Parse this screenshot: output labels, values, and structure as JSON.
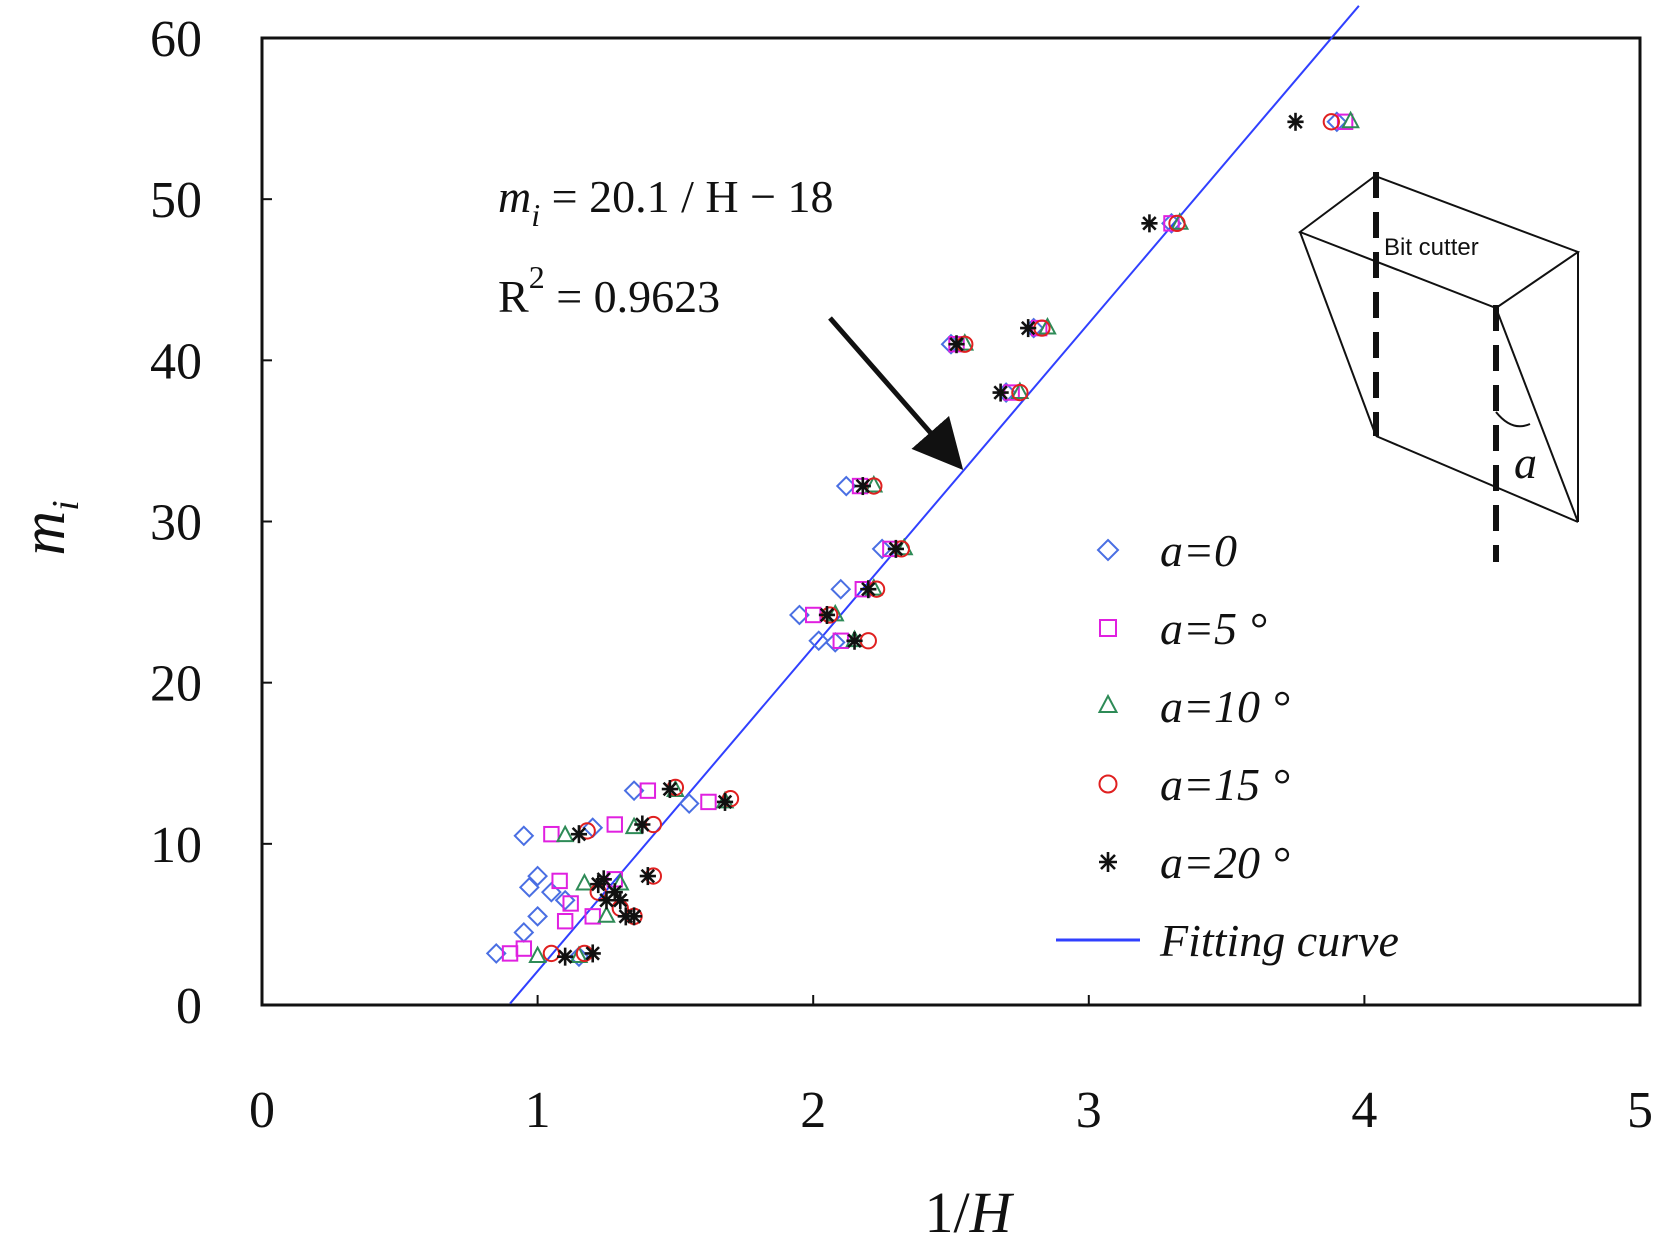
{
  "chart_data": {
    "type": "scatter",
    "xlabel": "1/H",
    "ylabel": "m_i",
    "xlim": [
      0,
      5
    ],
    "ylim": [
      0,
      60
    ],
    "xticks": [
      0,
      1,
      2,
      3,
      4,
      5
    ],
    "yticks": [
      0,
      10,
      20,
      30,
      40,
      50,
      60
    ],
    "grid": false,
    "legend_position": "right",
    "colors": {
      "a0": "#4a6fe3",
      "a5": "#e020e0",
      "a10": "#2e8b57",
      "a15": "#e02020",
      "a20": "#111111",
      "fit": "#3040ff"
    },
    "series": [
      {
        "name": "a=0",
        "marker": "diamond",
        "color_key": "a0",
        "points": [
          [
            0.85,
            3.2
          ],
          [
            0.95,
            4.5
          ],
          [
            1.0,
            5.5
          ],
          [
            0.97,
            7.3
          ],
          [
            1.0,
            8.0
          ],
          [
            0.95,
            10.5
          ],
          [
            1.05,
            7.0
          ],
          [
            1.2,
            11.0
          ],
          [
            1.35,
            13.3
          ],
          [
            1.55,
            12.5
          ],
          [
            1.95,
            24.2
          ],
          [
            2.02,
            22.6
          ],
          [
            2.1,
            25.8
          ],
          [
            2.12,
            32.2
          ],
          [
            2.25,
            28.3
          ],
          [
            2.08,
            22.5
          ],
          [
            2.5,
            41.0
          ],
          [
            2.7,
            38.0
          ],
          [
            2.8,
            42.0
          ],
          [
            3.3,
            48.5
          ],
          [
            3.9,
            54.8
          ],
          [
            1.1,
            6.5
          ],
          [
            1.15,
            3.0
          ]
        ]
      },
      {
        "name": "a=5°",
        "marker": "square",
        "color_key": "a5",
        "points": [
          [
            0.9,
            3.2
          ],
          [
            0.95,
            3.5
          ],
          [
            1.05,
            10.6
          ],
          [
            1.08,
            7.7
          ],
          [
            1.1,
            5.2
          ],
          [
            1.12,
            6.3
          ],
          [
            1.2,
            5.5
          ],
          [
            1.28,
            7.8
          ],
          [
            1.28,
            11.2
          ],
          [
            1.4,
            13.3
          ],
          [
            1.62,
            12.6
          ],
          [
            2.0,
            24.2
          ],
          [
            2.1,
            22.6
          ],
          [
            2.17,
            32.2
          ],
          [
            2.28,
            28.3
          ],
          [
            2.18,
            25.8
          ],
          [
            2.52,
            41.0
          ],
          [
            2.72,
            38.0
          ],
          [
            2.82,
            42.0
          ],
          [
            3.3,
            48.5
          ],
          [
            3.93,
            54.8
          ]
        ]
      },
      {
        "name": "a=10°",
        "marker": "triangle",
        "color_key": "a10",
        "points": [
          [
            1.0,
            3.0
          ],
          [
            1.15,
            3.0
          ],
          [
            1.1,
            10.5
          ],
          [
            1.17,
            7.5
          ],
          [
            1.25,
            5.5
          ],
          [
            1.35,
            11.0
          ],
          [
            1.3,
            7.5
          ],
          [
            1.5,
            13.3
          ],
          [
            1.68,
            12.6
          ],
          [
            2.08,
            24.2
          ],
          [
            2.15,
            22.6
          ],
          [
            2.22,
            32.2
          ],
          [
            2.33,
            28.3
          ],
          [
            2.22,
            25.8
          ],
          [
            2.55,
            41.0
          ],
          [
            2.75,
            38.0
          ],
          [
            2.85,
            42.0
          ],
          [
            3.33,
            48.5
          ],
          [
            3.95,
            54.8
          ]
        ]
      },
      {
        "name": "a=15°",
        "marker": "circle",
        "color_key": "a15",
        "points": [
          [
            1.05,
            3.2
          ],
          [
            1.17,
            3.2
          ],
          [
            1.18,
            10.8
          ],
          [
            1.22,
            7.0
          ],
          [
            1.3,
            6.0
          ],
          [
            1.42,
            11.2
          ],
          [
            1.42,
            8.0
          ],
          [
            1.5,
            13.5
          ],
          [
            1.7,
            12.8
          ],
          [
            2.06,
            24.2
          ],
          [
            2.2,
            22.6
          ],
          [
            2.22,
            32.2
          ],
          [
            2.32,
            28.3
          ],
          [
            2.23,
            25.8
          ],
          [
            2.55,
            41.0
          ],
          [
            2.75,
            38.0
          ],
          [
            2.83,
            42.0
          ],
          [
            3.32,
            48.5
          ],
          [
            3.88,
            54.8
          ],
          [
            1.35,
            5.5
          ]
        ]
      },
      {
        "name": "a=20°",
        "marker": "asterisk",
        "color_key": "a20",
        "points": [
          [
            1.1,
            3.0
          ],
          [
            1.2,
            3.2
          ],
          [
            1.15,
            10.6
          ],
          [
            1.22,
            7.5
          ],
          [
            1.25,
            6.5
          ],
          [
            1.3,
            6.5
          ],
          [
            1.32,
            5.5
          ],
          [
            1.38,
            11.2
          ],
          [
            1.4,
            8.0
          ],
          [
            1.35,
            5.5
          ],
          [
            1.48,
            13.4
          ],
          [
            1.68,
            12.6
          ],
          [
            2.05,
            24.2
          ],
          [
            2.15,
            22.6
          ],
          [
            2.18,
            32.2
          ],
          [
            2.3,
            28.3
          ],
          [
            2.2,
            25.8
          ],
          [
            2.52,
            41.0
          ],
          [
            2.68,
            38.0
          ],
          [
            2.78,
            42.0
          ],
          [
            3.22,
            48.5
          ],
          [
            3.75,
            54.8
          ],
          [
            1.28,
            7.0
          ],
          [
            1.24,
            7.8
          ]
        ]
      }
    ],
    "fit": {
      "name": "Fitting curve",
      "slope": 20.1,
      "intercept": -18,
      "x_range": [
        0.9,
        3.98
      ]
    },
    "annotations": {
      "equation": {
        "italic_m": "m",
        "sub_i": "i",
        "rest": " = 20.1 / H − 18"
      },
      "r2": {
        "r": "R",
        "sup": "2",
        "rest": " = 0.9623"
      },
      "inset_label": "Bit cutter",
      "inset_angle": "a"
    },
    "legend": [
      "a=0",
      "a=5 °",
      "a=10 °",
      "a=15 °",
      "a=20 °",
      "Fitting curve"
    ]
  }
}
